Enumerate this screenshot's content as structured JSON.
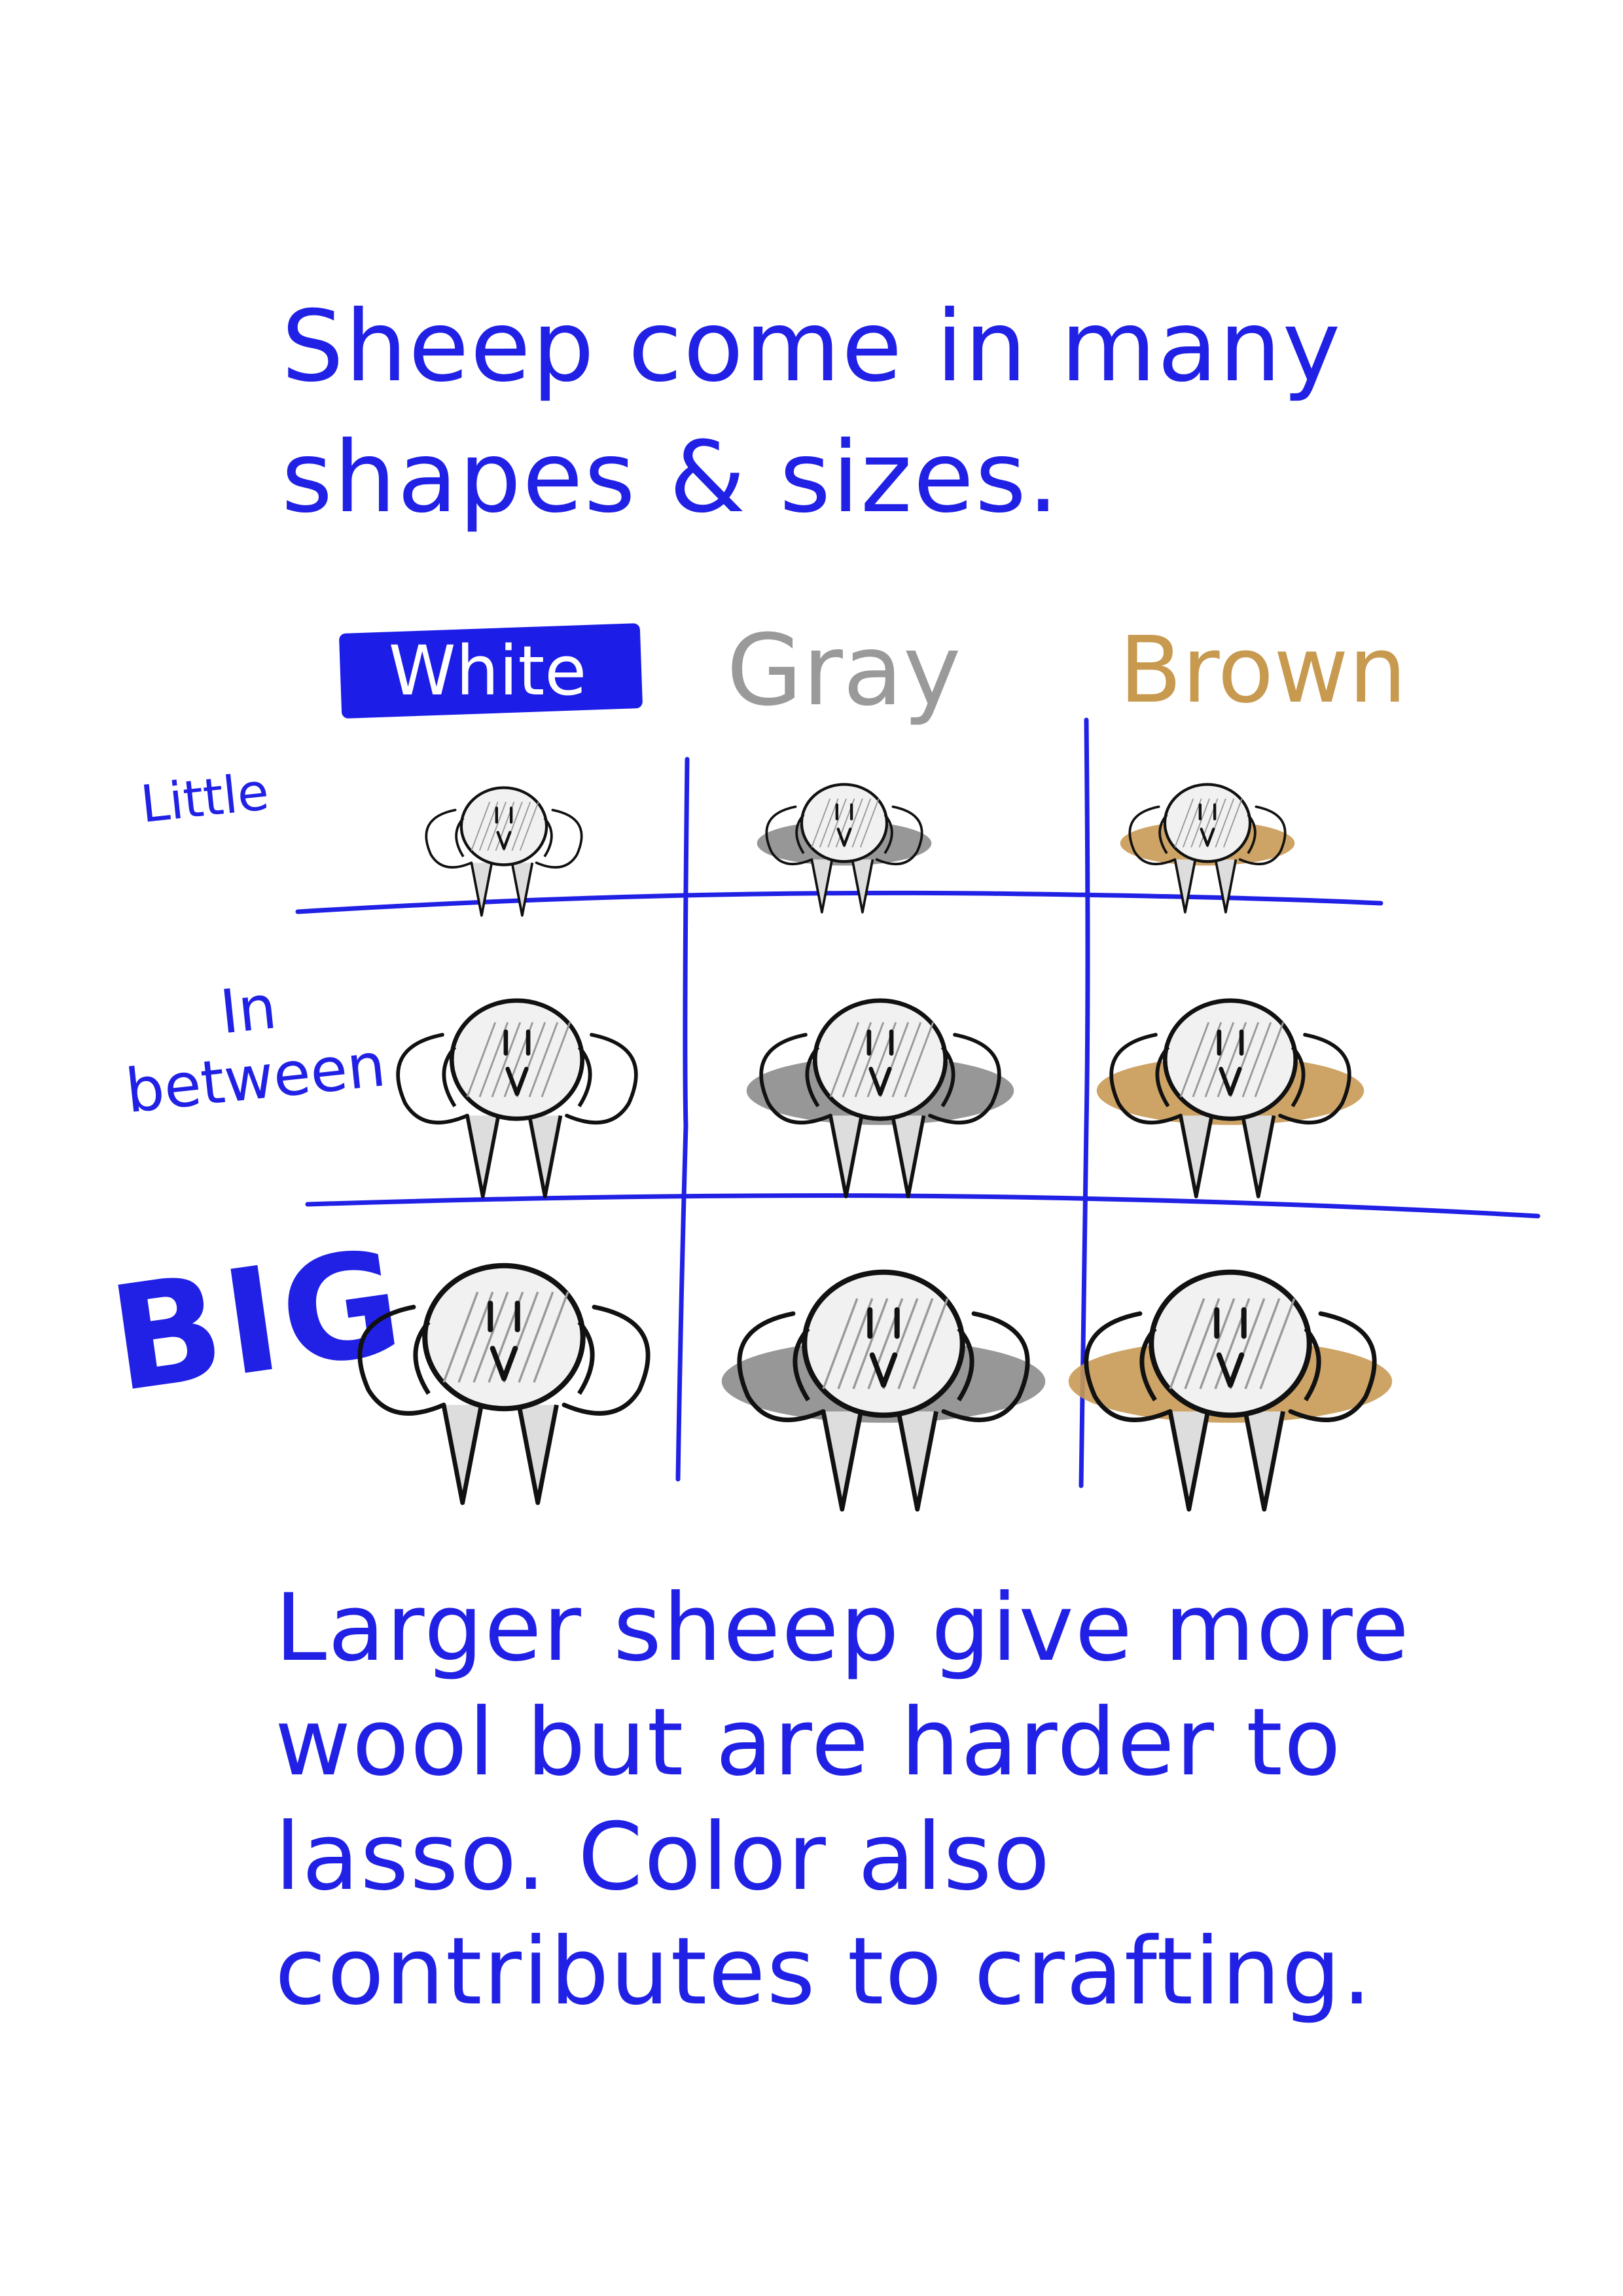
{
  "intro_text": "Sheep come in many shapes & sizes.",
  "columns": [
    {
      "label": "White",
      "color": "#ffffff",
      "highlight": "#1d1de8"
    },
    {
      "label": "Gray",
      "color": "#9a9a9a"
    },
    {
      "label": "Brown",
      "color": "#c79a50"
    }
  ],
  "rows": [
    {
      "label": "Little"
    },
    {
      "label": "In between"
    },
    {
      "label": "BIG"
    }
  ],
  "wool_colors": {
    "white": "#ffffff",
    "gray": "#8c8c8c",
    "brown": "#c89a55"
  },
  "ink_color": "#2121e6",
  "outro_text": "Larger sheep give more wool but are harder to lasso. Color also contributes to crafting."
}
